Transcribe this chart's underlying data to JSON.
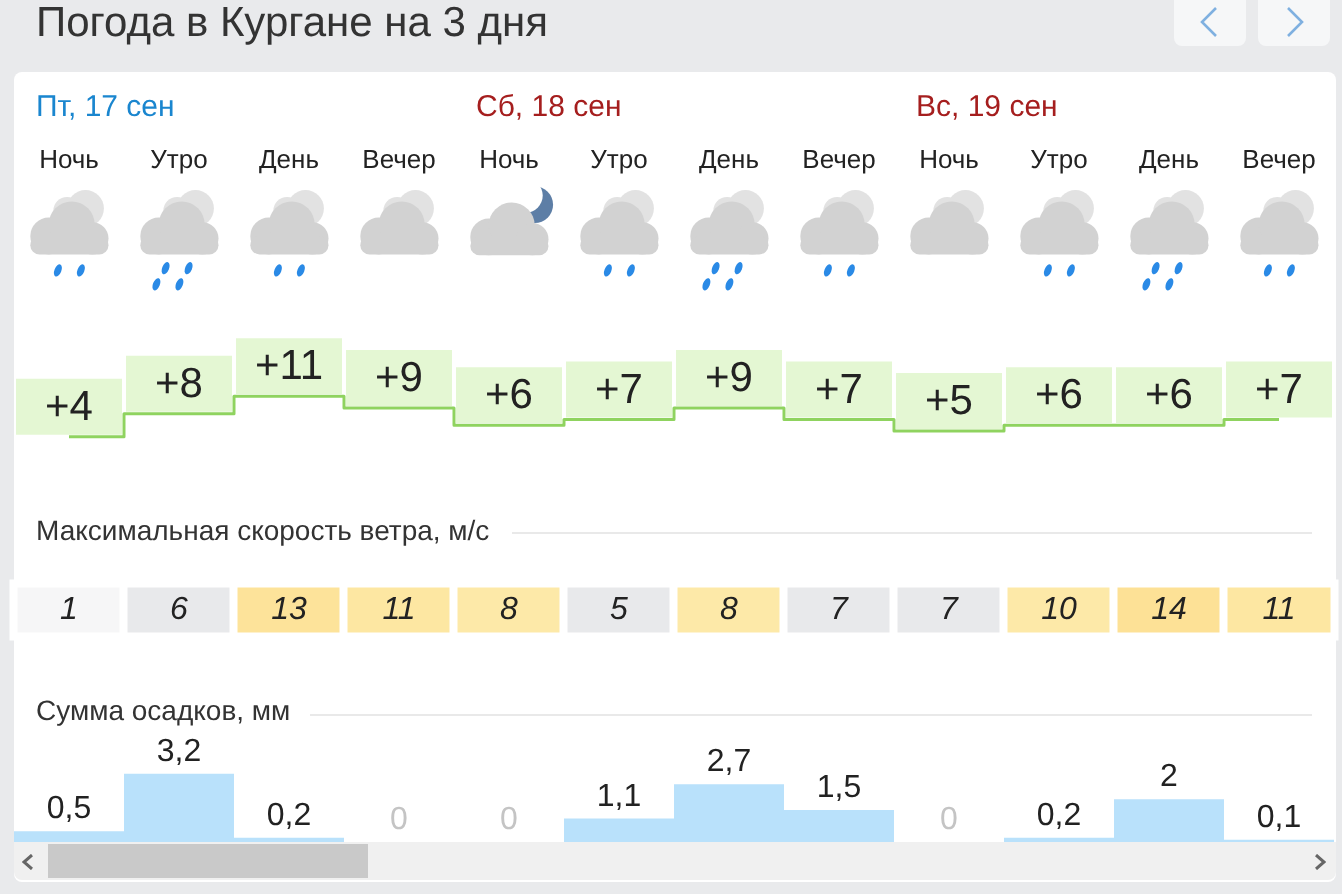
{
  "chart_data": [
    {
      "type": "step",
      "title": "Погода в Кургане на 3 дня",
      "annotations": [
        "Пт, 17 сен",
        "Сб, 18 сен",
        "Вс, 19 сен"
      ],
      "categories": [
        "Ночь",
        "Утро",
        "День",
        "Вечер",
        "Ночь",
        "Утро",
        "День",
        "Вечер",
        "Ночь",
        "Утро",
        "День",
        "Вечер"
      ],
      "values": [
        4,
        8,
        11,
        9,
        6,
        7,
        9,
        7,
        5,
        6,
        6,
        7
      ],
      "value_labels": [
        "+4",
        "+8",
        "+11",
        "+9",
        "+6",
        "+7",
        "+9",
        "+7",
        "+5",
        "+6",
        "+6",
        "+7"
      ],
      "color": "#8fd35f",
      "marker": "none",
      "tick_labels": "x"
    },
    {
      "type": "heatmap",
      "title": "Максимальная скорость ветра, м/с",
      "categories": [
        null,
        null,
        null,
        null,
        null,
        null,
        null,
        null,
        null,
        null,
        null,
        null
      ],
      "y_categories": [
        null
      ],
      "cells": [
        [
          1,
          6,
          13,
          11,
          8,
          5,
          8,
          7,
          7,
          10,
          14,
          11
        ]
      ],
      "data_labels": true,
      "tick_labels": false
    },
    {
      "type": "bar",
      "title": "Сумма осадков, мм",
      "categories": [
        null,
        null,
        null,
        null,
        null,
        null,
        null,
        null,
        null,
        null,
        null,
        null
      ],
      "values": [
        0.5,
        3.2,
        0.2,
        0,
        0,
        1.1,
        2.7,
        1.5,
        0,
        0.2,
        2,
        0.1
      ],
      "value_labels": [
        "0,5",
        "3,2",
        "0,2",
        "0",
        "0",
        "1,1",
        "2,7",
        "1,5",
        "0",
        "0,2",
        "2",
        "0,1"
      ],
      "color": "#b9e1fb",
      "tick_labels": false
    }
  ]
}
